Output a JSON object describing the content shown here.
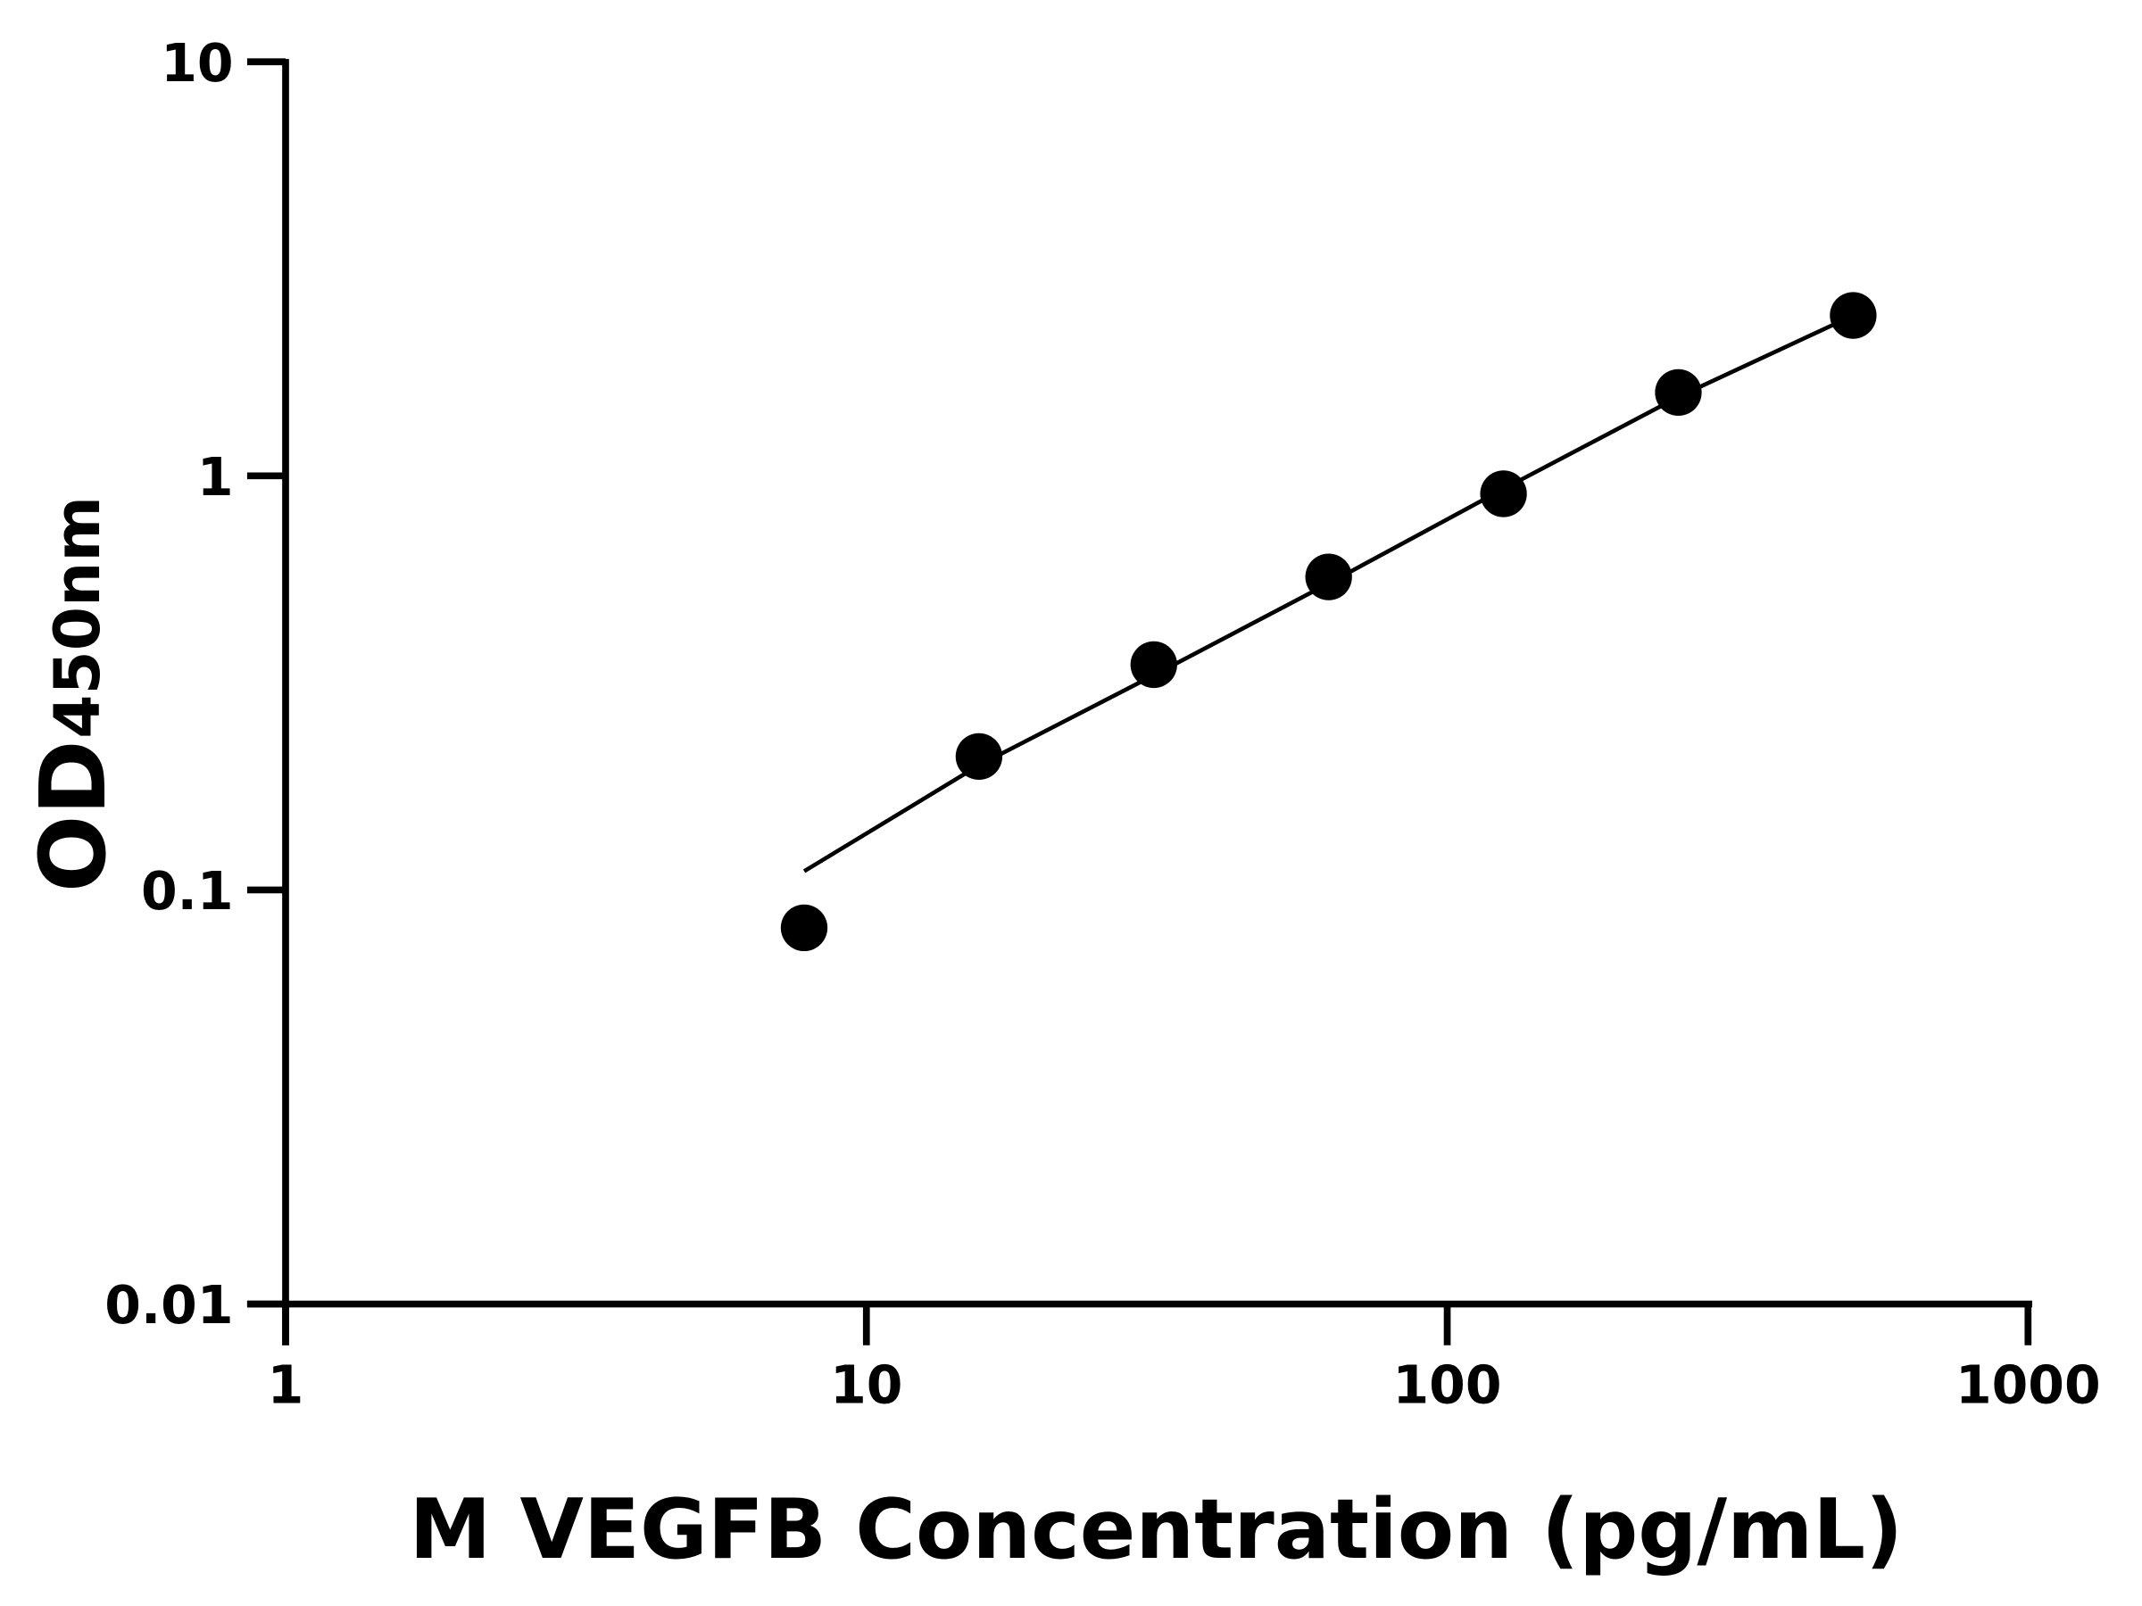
{
  "chart_data": {
    "type": "scatter",
    "title": "",
    "xlabel": "M VEGFB Concentration (pg/mL)",
    "ylabel_main": "OD",
    "ylabel_sub": "450nm",
    "x_scale": "log",
    "y_scale": "log",
    "xlim": [
      1,
      1000
    ],
    "ylim": [
      0.01,
      10
    ],
    "x_ticks": [
      1,
      10,
      100,
      1000
    ],
    "x_tick_labels": [
      "1",
      "10",
      "100",
      "1000"
    ],
    "y_ticks": [
      0.01,
      0.1,
      1,
      10
    ],
    "y_tick_labels": [
      "0.01",
      "0.1",
      "1",
      "10"
    ],
    "grid": false,
    "color": "#000000",
    "series": [
      {
        "type": "scatter",
        "x": [
          7.8125,
          15.625,
          31.25,
          62.5,
          125,
          250,
          500
        ],
        "y": [
          0.081,
          0.21,
          0.35,
          0.57,
          0.905,
          1.59,
          2.44
        ]
      },
      {
        "type": "line",
        "fit": true,
        "x": [
          7.8125,
          15.625,
          31.25,
          62.5,
          125,
          250,
          500
        ],
        "y": [
          0.111,
          0.2,
          0.33,
          0.55,
          0.93,
          1.55,
          2.44
        ]
      }
    ]
  }
}
